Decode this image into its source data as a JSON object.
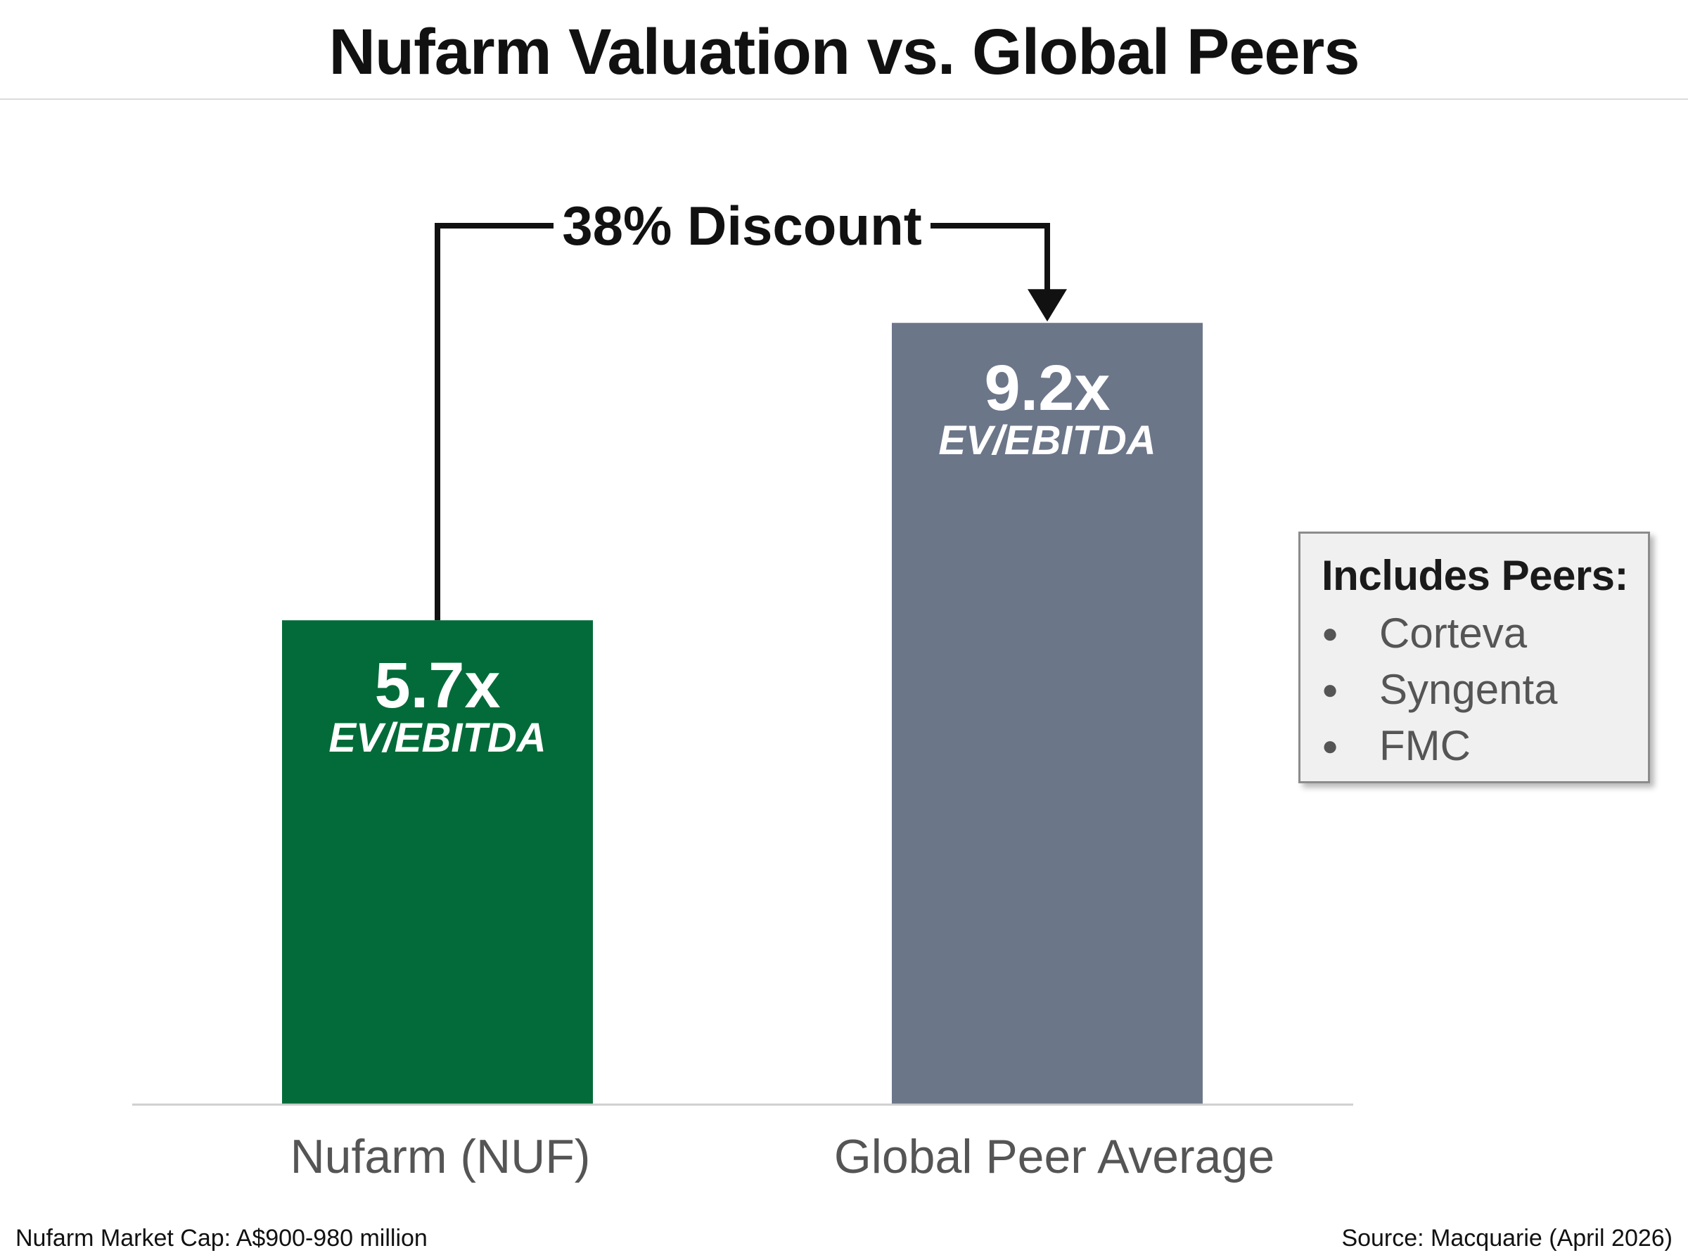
{
  "title": "Nufarm Valuation vs. Global Peers",
  "chart_data": {
    "type": "bar",
    "title": "Nufarm Valuation vs. Global Peers",
    "categories": [
      "Nufarm (NUF)",
      "Global Peer Average"
    ],
    "values": [
      5.7,
      9.2
    ],
    "value_labels": [
      "5.7x",
      "9.2x"
    ],
    "metric_label": "EV/EBITDA",
    "colors": [
      "#036b39",
      "#6c7689"
    ],
    "ylim": [
      0,
      13
    ],
    "grid": false,
    "annotation": {
      "label": "38% Discount",
      "from": "Nufarm (NUF)",
      "to": "Global Peer Average"
    }
  },
  "peers_box": {
    "title": "Includes Peers:",
    "items": [
      "Corteva",
      "Syngenta",
      "FMC"
    ]
  },
  "footnotes": {
    "left": "Nufarm Market Cap: A$900-980 million",
    "right": "Source: Macquarie (April 2026)"
  }
}
